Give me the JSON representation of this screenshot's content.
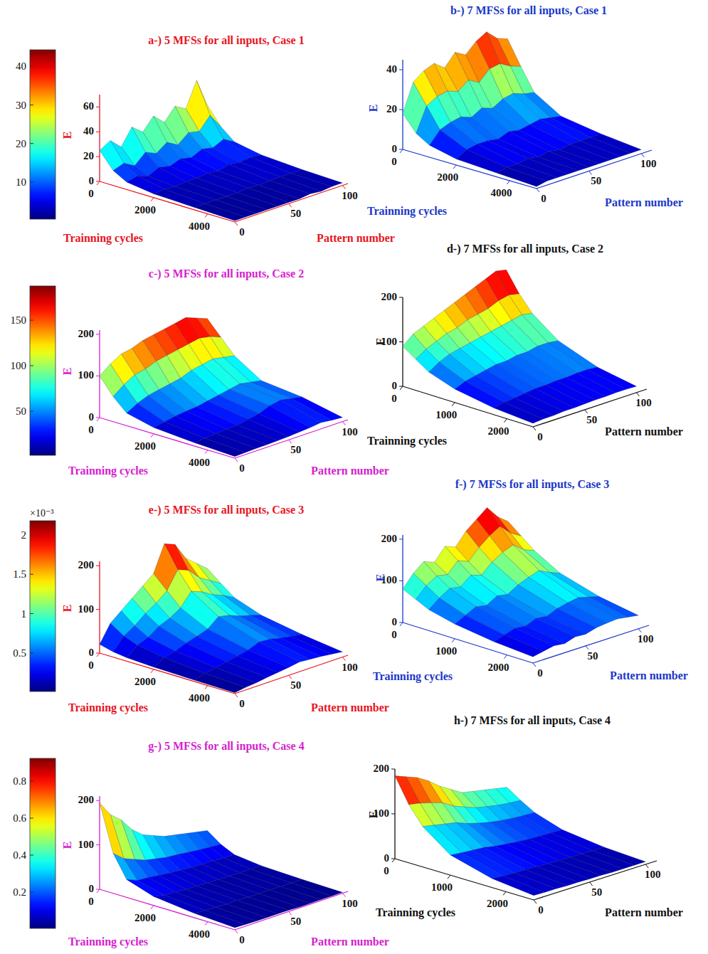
{
  "chart_data": [
    {
      "type": "surface",
      "title": "a-) 5 MFSs for all inputs, Case 1",
      "x_label": "Trainning cycles",
      "y_label": "Pattern number",
      "z_label": "E",
      "x": [
        0,
        500,
        1000,
        2000,
        3500,
        5000
      ],
      "y": [
        0,
        10,
        20,
        30,
        40,
        50,
        60,
        70,
        80,
        90,
        100
      ],
      "z": [
        [
          25,
          12,
          6,
          3,
          2,
          1
        ],
        [
          30,
          15,
          8,
          4,
          2,
          1
        ],
        [
          22,
          10,
          5,
          3,
          2,
          1
        ],
        [
          35,
          18,
          9,
          4,
          2,
          1
        ],
        [
          28,
          14,
          7,
          4,
          2,
          1
        ],
        [
          38,
          20,
          10,
          5,
          3,
          1
        ],
        [
          30,
          15,
          8,
          4,
          2,
          1
        ],
        [
          40,
          22,
          12,
          6,
          3,
          2
        ],
        [
          35,
          20,
          10,
          5,
          3,
          1
        ],
        [
          55,
          30,
          14,
          6,
          3,
          2
        ],
        [
          32,
          18,
          9,
          5,
          3,
          2
        ]
      ],
      "xlim": [
        0,
        5000
      ],
      "xticks": [
        0,
        2000,
        4000
      ],
      "ylim": [
        0,
        105
      ],
      "yticks": [
        0,
        50,
        100
      ],
      "zlim": [
        0,
        70
      ],
      "zticks": [
        0,
        20,
        40,
        60
      ],
      "colorbar": {
        "range": [
          0.4,
          44.3
        ],
        "ticks": [
          10,
          20,
          30,
          40
        ]
      }
    },
    {
      "type": "surface",
      "title": "b-) 7 MFSs for all inputs, Case 1",
      "x_label": "Trainning cycles",
      "y_label": "Pattern number",
      "z_label": "E",
      "x": [
        0,
        500,
        1000,
        2000,
        3500,
        5000
      ],
      "y": [
        0,
        10,
        20,
        30,
        40,
        50,
        60,
        70,
        80,
        90,
        100
      ],
      "z": [
        [
          18,
          10,
          6,
          3,
          2,
          1
        ],
        [
          32,
          22,
          12,
          6,
          3,
          2
        ],
        [
          36,
          25,
          14,
          7,
          3,
          2
        ],
        [
          38,
          26,
          15,
          7,
          4,
          2
        ],
        [
          34,
          24,
          13,
          6,
          3,
          2
        ],
        [
          40,
          28,
          16,
          8,
          4,
          2
        ],
        [
          37,
          25,
          14,
          7,
          3,
          2
        ],
        [
          42,
          30,
          17,
          8,
          4,
          2
        ],
        [
          45,
          31,
          18,
          9,
          4,
          2
        ],
        [
          40,
          28,
          16,
          8,
          4,
          2
        ],
        [
          38,
          26,
          15,
          7,
          4,
          2
        ]
      ],
      "xlim": [
        0,
        5000
      ],
      "xticks": [
        0,
        2000,
        4000
      ],
      "ylim": [
        0,
        110
      ],
      "yticks": [
        0,
        50,
        100
      ],
      "zlim": [
        0,
        45
      ],
      "zticks": [
        0,
        20,
        40
      ]
    },
    {
      "type": "surface",
      "title": "c-) 5 MFSs for all inputs, Case 2",
      "x_label": "Trainning cycles",
      "y_label": "Pattern number",
      "z_label": "E",
      "x": [
        0,
        500,
        1000,
        2000,
        3500,
        5000
      ],
      "y": [
        0,
        10,
        20,
        30,
        40,
        50,
        60,
        70,
        80,
        90,
        100
      ],
      "z": [
        [
          100,
          60,
          30,
          15,
          8,
          4
        ],
        [
          120,
          80,
          45,
          20,
          10,
          5
        ],
        [
          135,
          95,
          55,
          25,
          12,
          6
        ],
        [
          140,
          100,
          60,
          28,
          14,
          6
        ],
        [
          150,
          110,
          65,
          30,
          15,
          7
        ],
        [
          155,
          115,
          70,
          35,
          20,
          8
        ],
        [
          160,
          120,
          80,
          40,
          25,
          10
        ],
        [
          165,
          125,
          85,
          45,
          35,
          12
        ],
        [
          170,
          130,
          90,
          50,
          40,
          15
        ],
        [
          160,
          125,
          85,
          45,
          35,
          12
        ],
        [
          150,
          115,
          80,
          40,
          30,
          10
        ]
      ],
      "xlim": [
        0,
        5000
      ],
      "xticks": [
        0,
        2000,
        4000
      ],
      "ylim": [
        0,
        105
      ],
      "yticks": [
        0,
        50,
        100
      ],
      "zlim": [
        0,
        210
      ],
      "zticks": [
        0,
        100,
        200
      ],
      "colorbar": {
        "range": [
          1.6,
          187.5
        ],
        "ticks": [
          50,
          100,
          150
        ]
      }
    },
    {
      "type": "surface",
      "title": "d-) 7 MFSs for all inputs, Case 2",
      "x_label": "Trainning cycles",
      "y_label": "Pattern number",
      "z_label": "E",
      "x": [
        0,
        250,
        500,
        1000,
        1750,
        2500
      ],
      "y": [
        0,
        10,
        20,
        30,
        40,
        50,
        60,
        70,
        80,
        90,
        100
      ],
      "z": [
        [
          90,
          70,
          50,
          30,
          15,
          8
        ],
        [
          110,
          85,
          65,
          40,
          20,
          10
        ],
        [
          120,
          95,
          75,
          45,
          22,
          10
        ],
        [
          130,
          105,
          80,
          50,
          25,
          12
        ],
        [
          140,
          110,
          85,
          55,
          28,
          12
        ],
        [
          150,
          120,
          90,
          55,
          28,
          13
        ],
        [
          160,
          125,
          95,
          60,
          30,
          14
        ],
        [
          170,
          130,
          100,
          60,
          30,
          14
        ],
        [
          180,
          140,
          105,
          65,
          32,
          15
        ],
        [
          190,
          145,
          110,
          65,
          32,
          15
        ],
        [
          185,
          140,
          105,
          62,
          30,
          14
        ]
      ],
      "xlim": [
        0,
        2500
      ],
      "xticks": [
        0,
        1000,
        2000
      ],
      "ylim": [
        0,
        110
      ],
      "yticks": [
        0,
        50,
        100
      ],
      "zlim": [
        0,
        200
      ],
      "zticks": [
        0,
        100,
        200
      ]
    },
    {
      "type": "surface",
      "title": "e-) 5 MFSs for all inputs, Case 3",
      "x_label": "Trainning cycles",
      "y_label": "Pattern number",
      "z_label": "E",
      "x": [
        0,
        500,
        1000,
        2000,
        3500,
        5000
      ],
      "y": [
        0,
        10,
        20,
        30,
        40,
        50,
        60,
        70,
        80,
        90,
        100
      ],
      "z": [
        [
          20,
          12,
          8,
          5,
          3,
          2
        ],
        [
          60,
          40,
          28,
          18,
          10,
          6
        ],
        [
          80,
          55,
          38,
          25,
          15,
          8
        ],
        [
          100,
          75,
          55,
          35,
          20,
          12
        ],
        [
          120,
          90,
          65,
          42,
          25,
          15
        ],
        [
          140,
          110,
          80,
          50,
          30,
          18
        ],
        [
          200,
          150,
          110,
          70,
          40,
          22
        ],
        [
          190,
          140,
          100,
          65,
          38,
          20
        ],
        [
          150,
          115,
          85,
          55,
          32,
          18
        ],
        [
          130,
          100,
          75,
          48,
          28,
          15
        ],
        [
          110,
          85,
          62,
          40,
          24,
          12
        ]
      ],
      "xlim": [
        0,
        5000
      ],
      "xticks": [
        0,
        2000,
        4000
      ],
      "ylim": [
        0,
        105
      ],
      "yticks": [
        0,
        50,
        100
      ],
      "zlim": [
        0,
        210
      ],
      "zticks": [
        0,
        100,
        200
      ],
      "colorbar": {
        "range": [
          0.01,
          2.18
        ],
        "ticks": [
          0.5,
          1,
          1.5,
          2
        ],
        "label": "×10⁻³"
      }
    },
    {
      "type": "surface",
      "title": "f-) 7 MFSs for all inputs, Case 3",
      "x_label": "Trainning cycles",
      "y_label": "Pattern number",
      "z_label": "E",
      "x": [
        0,
        250,
        500,
        1000,
        1750,
        2500
      ],
      "y": [
        0,
        10,
        20,
        30,
        40,
        50,
        60,
        70,
        80,
        90,
        100
      ],
      "z": [
        [
          80,
          65,
          50,
          35,
          22,
          15
        ],
        [
          110,
          90,
          70,
          48,
          30,
          20
        ],
        [
          130,
          105,
          85,
          60,
          38,
          25
        ],
        [
          120,
          100,
          80,
          55,
          35,
          22
        ],
        [
          150,
          125,
          100,
          70,
          45,
          30
        ],
        [
          140,
          115,
          92,
          65,
          42,
          28
        ],
        [
          170,
          140,
          115,
          80,
          52,
          35
        ],
        [
          190,
          160,
          130,
          90,
          58,
          38
        ],
        [
          210,
          175,
          140,
          98,
          62,
          40
        ],
        [
          180,
          150,
          120,
          85,
          55,
          36
        ],
        [
          160,
          135,
          110,
          75,
          48,
          32
        ]
      ],
      "xlim": [
        0,
        2500
      ],
      "xticks": [
        0,
        1000,
        2000
      ],
      "ylim": [
        0,
        110
      ],
      "yticks": [
        0,
        50,
        100
      ],
      "zlim": [
        0,
        210
      ],
      "zticks": [
        0,
        100,
        200
      ]
    },
    {
      "type": "surface",
      "title": "g-) 5 MFSs for all inputs, Case 4",
      "x_label": "Trainning cycles",
      "y_label": "Pattern number",
      "z_label": "E",
      "x": [
        0,
        500,
        1000,
        2000,
        3500,
        5000
      ],
      "y": [
        0,
        10,
        20,
        30,
        40,
        50,
        60,
        70,
        80,
        90,
        100
      ],
      "z": [
        [
          195,
          90,
          40,
          20,
          10,
          5
        ],
        [
          160,
          70,
          30,
          15,
          8,
          4
        ],
        [
          140,
          60,
          28,
          14,
          7,
          3
        ],
        [
          110,
          50,
          25,
          12,
          6,
          3
        ],
        [
          90,
          45,
          22,
          11,
          6,
          3
        ],
        [
          80,
          40,
          20,
          10,
          5,
          3
        ],
        [
          70,
          38,
          18,
          9,
          5,
          2
        ],
        [
          65,
          35,
          17,
          9,
          5,
          2
        ],
        [
          60,
          32,
          16,
          8,
          4,
          2
        ],
        [
          55,
          30,
          15,
          8,
          4,
          2
        ],
        [
          50,
          28,
          14,
          7,
          4,
          2
        ]
      ],
      "xlim": [
        0,
        5000
      ],
      "xticks": [
        0,
        2000,
        4000
      ],
      "ylim": [
        0,
        105
      ],
      "yticks": [
        0,
        50,
        100
      ],
      "zlim": [
        0,
        210
      ],
      "zticks": [
        0,
        100,
        200
      ],
      "colorbar": {
        "range": [
          0.004,
          0.923
        ],
        "ticks": [
          0.2,
          0.4,
          0.6,
          0.8
        ]
      }
    },
    {
      "type": "surface",
      "title": "h-) 7 MFSs for all inputs, Case 4",
      "x_label": "Trainning cycles",
      "y_label": "Pattern number",
      "z_label": "E",
      "x": [
        0,
        250,
        500,
        1000,
        1750,
        2500
      ],
      "y": [
        0,
        10,
        20,
        30,
        40,
        50,
        60,
        70,
        80,
        90,
        100
      ],
      "z": [
        [
          185,
          130,
          90,
          45,
          20,
          10
        ],
        [
          175,
          125,
          85,
          42,
          18,
          9
        ],
        [
          165,
          118,
          80,
          40,
          17,
          9
        ],
        [
          150,
          110,
          75,
          38,
          16,
          8
        ],
        [
          130,
          95,
          65,
          33,
          15,
          8
        ],
        [
          115,
          85,
          58,
          30,
          14,
          7
        ],
        [
          100,
          75,
          52,
          27,
          13,
          7
        ],
        [
          95,
          70,
          48,
          25,
          12,
          6
        ],
        [
          90,
          65,
          45,
          24,
          12,
          6
        ],
        [
          85,
          62,
          43,
          23,
          11,
          6
        ],
        [
          80,
          60,
          42,
          22,
          11,
          6
        ]
      ],
      "xlim": [
        0,
        2500
      ],
      "xticks": [
        0,
        1000,
        2000
      ],
      "ylim": [
        0,
        110
      ],
      "yticks": [
        0,
        50,
        100
      ],
      "zlim": [
        0,
        200
      ],
      "zticks": [
        0,
        100,
        200
      ]
    }
  ]
}
